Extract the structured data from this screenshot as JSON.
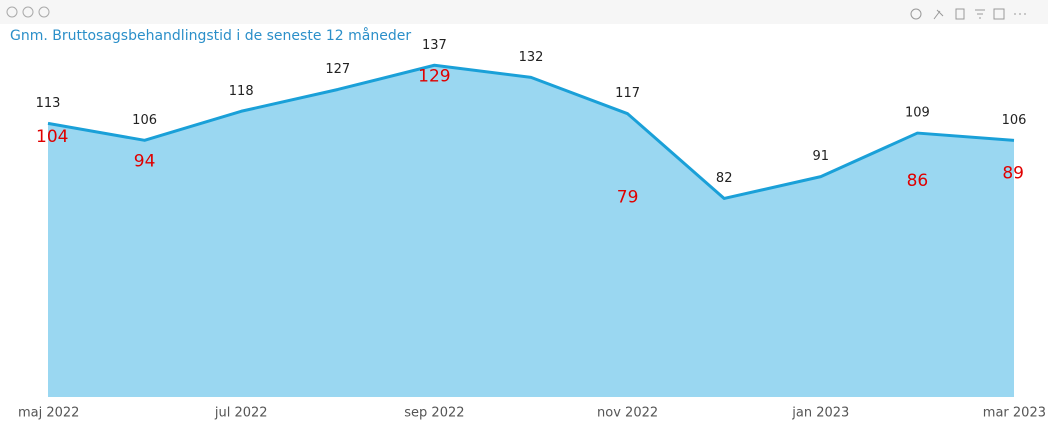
{
  "chart_data": {
    "type": "area",
    "title": "Gnm. Bruttosagsbehandlingstid i de seneste 12 måneder",
    "categories": [
      "maj 2022",
      null,
      "jul 2022",
      null,
      "sep 2022",
      null,
      "nov 2022",
      null,
      "jan 2023",
      null,
      "mar 2023"
    ],
    "series": [
      {
        "color": "#1aa0d8",
        "fill": "#9ad7f1",
        "values": [
          113,
          106,
          118,
          127,
          137,
          132,
          117,
          82,
          91,
          109,
          106
        ]
      },
      {
        "color": "#e00000",
        "values": [
          104,
          94,
          null,
          null,
          129,
          null,
          79,
          null,
          null,
          86,
          89
        ]
      }
    ],
    "ylim": [
      0,
      140
    ]
  }
}
